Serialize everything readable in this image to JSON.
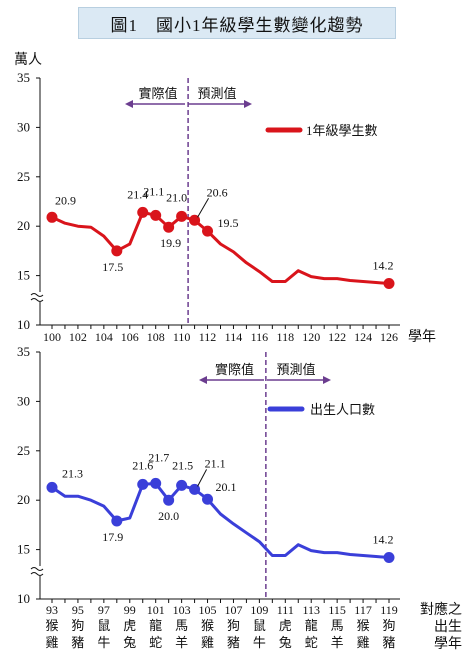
{
  "title": "圖1　國小1年級學生數變化趨勢",
  "colors": {
    "series1": "#d9141b",
    "series2": "#3a3fd9",
    "divider": "#6b3d8f",
    "annotation": "#6b3d8f",
    "title_bg": "#dbe9f4"
  },
  "chart_data": [
    {
      "type": "line",
      "ylabel": "萬人",
      "xlabel": "學年",
      "ylim": [
        10,
        35
      ],
      "yticks": [
        "35",
        "30",
        "25",
        "20",
        "15",
        "10"
      ],
      "axis_break": true,
      "x": [
        100,
        101,
        102,
        103,
        104,
        105,
        106,
        107,
        108,
        109,
        110,
        111,
        112,
        113,
        114,
        115,
        116,
        117,
        118,
        119,
        120,
        121,
        122,
        123,
        124,
        125,
        126
      ],
      "x_tick_labels": [
        "100",
        "102",
        "104",
        "106",
        "108",
        "110",
        "112",
        "114",
        "116",
        "118",
        "120",
        "122",
        "124",
        "126"
      ],
      "series": [
        {
          "name": "1年級學生數",
          "values": [
            20.9,
            20.3,
            20.0,
            19.9,
            19.0,
            17.5,
            18.2,
            21.4,
            21.1,
            19.9,
            21.0,
            20.6,
            19.5,
            18.2,
            17.4,
            16.3,
            15.4,
            14.4,
            14.4,
            15.5,
            14.9,
            14.7,
            14.7,
            14.5,
            14.4,
            14.3,
            14.2
          ]
        }
      ],
      "data_labels": [
        {
          "x": 100,
          "text": "20.9"
        },
        {
          "x": 105,
          "text": "17.5"
        },
        {
          "x": 107,
          "text": "21.4"
        },
        {
          "x": 108,
          "text": "21.1"
        },
        {
          "x": 109,
          "text": "19.9"
        },
        {
          "x": 110,
          "text": "21.0"
        },
        {
          "x": 111,
          "text": "20.6"
        },
        {
          "x": 112,
          "text": "19.5"
        },
        {
          "x": 126,
          "text": "14.2"
        }
      ],
      "divider_x": 110.5,
      "left_annotation": "實際值",
      "right_annotation": "預測值",
      "legend_position": "top-right"
    },
    {
      "type": "line",
      "xlabel_lines": [
        "對應之",
        "出生",
        "學年"
      ],
      "ylim": [
        10,
        35
      ],
      "yticks": [
        "35",
        "30",
        "25",
        "20",
        "15",
        "10"
      ],
      "axis_break": true,
      "x": [
        93,
        94,
        95,
        96,
        97,
        98,
        99,
        100,
        101,
        102,
        103,
        104,
        105,
        106,
        107,
        108,
        109,
        110,
        111,
        112,
        113,
        114,
        115,
        116,
        117,
        118,
        119
      ],
      "x_tick_labels": [
        "93",
        "95",
        "97",
        "99",
        "101",
        "103",
        "105",
        "107",
        "109",
        "111",
        "113",
        "115",
        "117",
        "119"
      ],
      "x_sub_labels": [
        [
          "猴",
          "雞"
        ],
        [
          "狗",
          "豬"
        ],
        [
          "鼠",
          "牛"
        ],
        [
          "虎",
          "兔"
        ],
        [
          "龍",
          "蛇"
        ],
        [
          "馬",
          "羊"
        ],
        [
          "猴",
          "雞"
        ],
        [
          "狗",
          "豬"
        ],
        [
          "鼠",
          "牛"
        ],
        [
          "虎",
          "兔"
        ],
        [
          "龍",
          "蛇"
        ],
        [
          "馬",
          "羊"
        ],
        [
          "猴",
          "雞"
        ],
        [
          "狗",
          "豬"
        ]
      ],
      "series": [
        {
          "name": "出生人口數",
          "values": [
            21.3,
            20.4,
            20.4,
            20.0,
            19.4,
            17.9,
            18.2,
            21.6,
            21.7,
            20.0,
            21.5,
            21.1,
            20.1,
            18.6,
            17.6,
            16.7,
            15.8,
            14.4,
            14.4,
            15.5,
            14.9,
            14.7,
            14.7,
            14.5,
            14.4,
            14.3,
            14.2
          ]
        }
      ],
      "data_labels": [
        {
          "x": 93,
          "text": "21.3"
        },
        {
          "x": 98,
          "text": "17.9"
        },
        {
          "x": 100,
          "text": "21.6"
        },
        {
          "x": 101,
          "text": "21.7"
        },
        {
          "x": 102,
          "text": "20.0"
        },
        {
          "x": 103,
          "text": "21.5"
        },
        {
          "x": 104,
          "text": "21.1"
        },
        {
          "x": 105,
          "text": "20.1"
        },
        {
          "x": 119,
          "text": "14.2"
        }
      ],
      "divider_x": 109.5,
      "left_annotation": "實際值",
      "right_annotation": "預測值",
      "legend_position": "top-right"
    }
  ]
}
